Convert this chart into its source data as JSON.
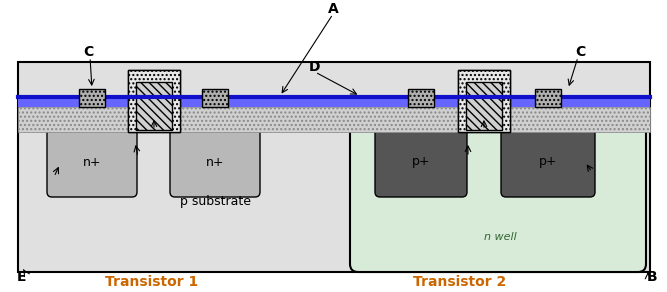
{
  "fig_width": 6.67,
  "fig_height": 2.92,
  "dpi": 100,
  "bg_color": "#ffffff",
  "substrate_color": "#e0e0e0",
  "nwell_color": "#d8ead8",
  "nplus_color": "#b8b8b8",
  "pplus_color": "#555555",
  "blue_hatch_color": "#6666ff",
  "dot_oxide_color": "#d8d8d8",
  "blue_line_color": "#1111cc",
  "transistor_label_color": "#cc6600",
  "annotation_color": "#000000",
  "substrate_label": "p substrate",
  "nwell_label": "n well",
  "transistor1_label": "Transistor 1",
  "transistor2_label": "Transistor 2",
  "label_A": "A",
  "label_B": "B",
  "label_C": "C",
  "label_D": "D",
  "label_E": "E"
}
